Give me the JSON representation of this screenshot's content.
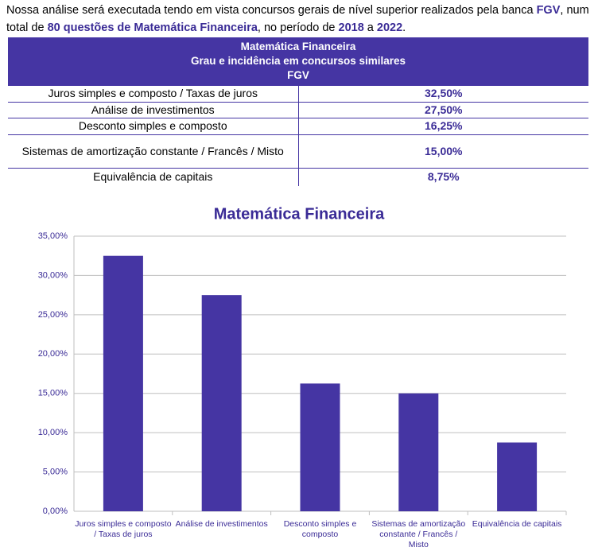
{
  "intro": [
    {
      "text": "Nossa análise será executada tendo em vista concursos gerais de nível superior realizados pela banca ",
      "strong": false
    },
    {
      "text": "FGV",
      "strong": true
    },
    {
      "text": ", num total de ",
      "strong": false
    },
    {
      "text": "80 questões de Matemática Financeira",
      "strong": true
    },
    {
      "text": ", no período de ",
      "strong": false
    },
    {
      "text": "2018",
      "strong": true
    },
    {
      "text": " a ",
      "strong": false
    },
    {
      "text": "2022",
      "strong": true
    },
    {
      "text": ".",
      "strong": false
    }
  ],
  "table": {
    "header": [
      "Matemática Financeira",
      "Grau e incidência em concursos similares",
      "FGV"
    ],
    "rows": [
      [
        "Juros simples e composto / Taxas de juros",
        "32,50%"
      ],
      [
        "Análise de investimentos",
        "27,50%"
      ],
      [
        "Desconto simples e composto",
        "16,25%"
      ],
      [
        "Sistemas de amortização constante / Francês / Misto",
        "15,00%"
      ],
      [
        "Equivalência de capitais",
        "8,75%"
      ]
    ]
  },
  "chart_data": {
    "type": "bar",
    "title": "Matemática Financeira",
    "categories": [
      "Juros simples e composto / Taxas de juros",
      "Análise de investimentos",
      "Desconto simples e composto",
      "Sistemas de amortização constante / Francês / Misto",
      "Equivalência de capitais"
    ],
    "values": [
      32.5,
      27.5,
      16.25,
      15,
      8.75
    ],
    "color": "#4535a3",
    "ylim": [
      0,
      35
    ],
    "yticks": [
      {
        "value": 0,
        "label": "0,00%"
      },
      {
        "value": 5,
        "label": "5,00%"
      },
      {
        "value": 10,
        "label": "10,00%"
      },
      {
        "value": 15,
        "label": "15,00%"
      },
      {
        "value": 20,
        "label": "20,00%"
      },
      {
        "value": 25,
        "label": "25,00%"
      },
      {
        "value": 30,
        "label": "30,00%"
      },
      {
        "value": 35,
        "label": "35,00%"
      }
    ],
    "grid": true
  }
}
